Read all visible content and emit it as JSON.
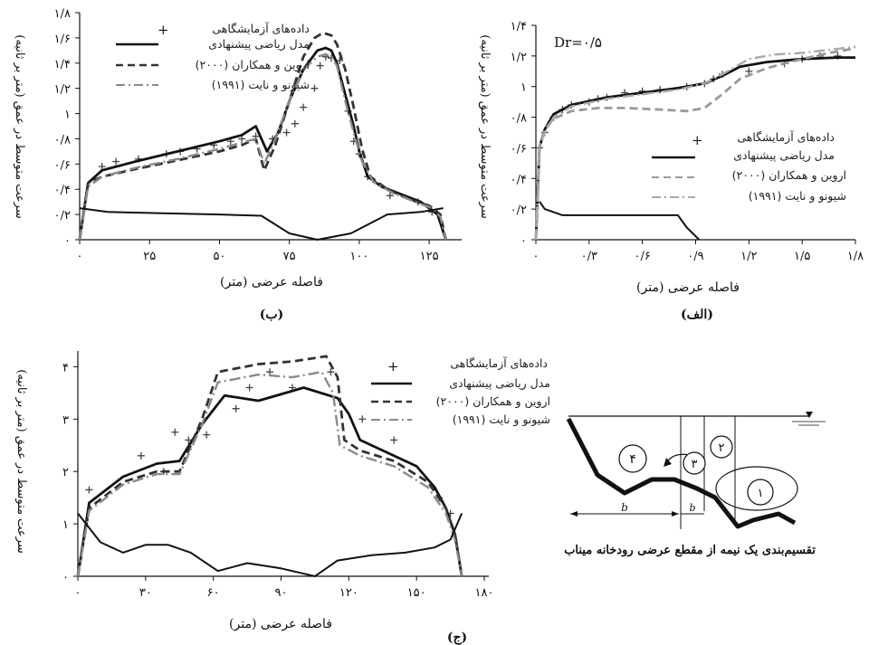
{
  "chart_data": [
    {
      "id": "b",
      "type": "line",
      "caption": "(ب)",
      "xlabel": "فاصله عرضی (متر)",
      "ylabel": "سرعت متوسط در عمق (متر بر ثانیه)",
      "xlim": [
        0,
        135
      ],
      "ylim": [
        0,
        1.8
      ],
      "xticks": [
        0,
        25,
        50,
        75,
        100,
        125
      ],
      "xtick_labels": [
        "۰",
        "۲۵",
        "۵۰",
        "۷۵",
        "۱۰۰",
        "۱۲۵"
      ],
      "yticks": [
        0,
        0.2,
        0.4,
        0.6,
        0.8,
        1,
        1.2,
        1.4,
        1.6,
        1.8
      ],
      "ytick_labels": [
        "۰",
        "۰/۲",
        "۰/۴",
        "۰/۶",
        "۰/۸",
        "۱",
        "۱/۲",
        "۱/۴",
        "۱/۶",
        "۱/۸"
      ],
      "legend_position": "top",
      "legend": [
        "داده‌های آزمایشگاهی",
        "مدل ریاضی پیشنهادی",
        "اروین و همکاران (۲۰۰۰)",
        "شیونو و نایت (۱۹۹۱)"
      ],
      "series": [
        {
          "name": "داده‌های آزمایشگاهی",
          "style": "marker",
          "color": "#444444",
          "x": [
            8,
            13,
            21,
            31,
            36,
            42,
            48,
            54,
            58,
            63,
            69,
            74,
            77,
            80,
            84,
            86,
            88,
            90,
            93,
            96,
            98,
            100,
            103,
            111,
            121,
            126
          ],
          "y": [
            0.58,
            0.62,
            0.64,
            0.68,
            0.7,
            0.72,
            0.75,
            0.78,
            0.8,
            0.82,
            0.8,
            0.85,
            0.92,
            1.05,
            1.2,
            1.38,
            1.45,
            1.44,
            1.42,
            1.02,
            0.78,
            0.68,
            0.5,
            0.35,
            0.3,
            0.22
          ]
        },
        {
          "name": "مدل ریاضی پیشنهادی",
          "style": "solid",
          "color": "#111111",
          "x": [
            0,
            3,
            8,
            20,
            35,
            50,
            58,
            63,
            67,
            71,
            75,
            80,
            85,
            88,
            90,
            92,
            95,
            98,
            100,
            103,
            108,
            115,
            122,
            128,
            131
          ],
          "y": [
            0,
            0.45,
            0.55,
            0.62,
            0.7,
            0.78,
            0.83,
            0.9,
            0.7,
            0.85,
            1.1,
            1.35,
            1.5,
            1.52,
            1.5,
            1.4,
            1.15,
            0.9,
            0.7,
            0.5,
            0.42,
            0.36,
            0.3,
            0.2,
            0
          ]
        },
        {
          "name": "اروین و همکاران (۲۰۰۰)",
          "style": "dashed",
          "color": "#333333",
          "x": [
            0,
            3,
            8,
            20,
            35,
            50,
            58,
            63,
            66,
            70,
            75,
            80,
            84,
            87,
            90,
            92,
            95,
            98,
            101,
            104,
            110,
            118,
            125,
            129,
            131
          ],
          "y": [
            0,
            0.45,
            0.5,
            0.56,
            0.63,
            0.7,
            0.75,
            0.8,
            0.55,
            0.75,
            1.1,
            1.45,
            1.6,
            1.64,
            1.62,
            1.55,
            1.35,
            1.05,
            0.72,
            0.5,
            0.4,
            0.32,
            0.27,
            0.2,
            0
          ]
        },
        {
          "name": "شیونو و نایت (۱۹۹۱)",
          "style": "dashdot",
          "color": "#8a8a8a",
          "x": [
            0,
            3,
            8,
            20,
            35,
            50,
            58,
            63,
            66,
            70,
            75,
            80,
            85,
            88,
            90,
            92,
            95,
            98,
            101,
            105,
            112,
            120,
            126,
            129,
            131
          ],
          "y": [
            0,
            0.42,
            0.5,
            0.57,
            0.64,
            0.72,
            0.77,
            0.8,
            0.6,
            0.8,
            1.1,
            1.35,
            1.45,
            1.47,
            1.45,
            1.38,
            1.1,
            0.85,
            0.62,
            0.46,
            0.37,
            0.3,
            0.25,
            0.18,
            0
          ]
        },
        {
          "name": "",
          "style": "solid-thin",
          "color": "#111111",
          "x": [
            0,
            10,
            30,
            50,
            65,
            75,
            85,
            97,
            110,
            122,
            130
          ],
          "y": [
            0.25,
            0.22,
            0.21,
            0.2,
            0.19,
            0.05,
            0,
            0.05,
            0.2,
            0.22,
            0.25
          ]
        }
      ]
    },
    {
      "id": "alef",
      "type": "line",
      "caption": "(الف)",
      "annotation": "Dr=۰/۵",
      "xlabel": "فاصله عرضی (متر)",
      "ylabel": "سرعت متوسط در عمق (متر بر ثانیه)",
      "xlim": [
        0,
        1.8
      ],
      "ylim": [
        0,
        1.4
      ],
      "xticks": [
        0,
        0.3,
        0.6,
        0.9,
        1.2,
        1.5,
        1.8
      ],
      "xtick_labels": [
        "۰",
        "۰/۳",
        "۰/۶",
        "۰/۹",
        "۱/۲",
        "۱/۵",
        "۱/۸"
      ],
      "yticks": [
        0,
        0.2,
        0.4,
        0.6,
        0.8,
        1,
        1.2,
        1.4
      ],
      "ytick_labels": [
        "۰",
        "۰/۲",
        "۰/۴",
        "۰/۶",
        "۰/۸",
        "۱",
        "۱/۲",
        "۱/۴"
      ],
      "legend_position": "right",
      "legend": [
        "داده‌های آزمایشگاهی",
        "مدل ریاضی پیشنهادی",
        "اروین و همکاران (۲۰۰۰)",
        "شیونو و نایت (۱۹۹۱)"
      ],
      "series": [
        {
          "name": "داده‌های آزمایشگاهی",
          "style": "marker",
          "color": "#444444",
          "x": [
            0.02,
            0.05,
            0.1,
            0.15,
            0.2,
            0.3,
            0.35,
            0.4,
            0.5,
            0.6,
            0.7,
            0.85,
            0.95,
            1.0,
            1.05,
            1.2,
            1.4,
            1.5,
            1.6,
            1.7
          ],
          "y": [
            0.6,
            0.7,
            0.8,
            0.85,
            0.88,
            0.9,
            0.92,
            0.93,
            0.96,
            0.97,
            0.98,
            1.0,
            1.02,
            1.05,
            1.08,
            1.1,
            1.15,
            1.18,
            1.2,
            1.2
          ]
        },
        {
          "name": "مدل ریاضی پیشنهادی",
          "style": "solid",
          "color": "#111111",
          "x": [
            0,
            0.02,
            0.05,
            0.1,
            0.2,
            0.4,
            0.6,
            0.8,
            0.95,
            1.05,
            1.15,
            1.3,
            1.5,
            1.7,
            1.8
          ],
          "y": [
            0,
            0.6,
            0.72,
            0.82,
            0.88,
            0.93,
            0.96,
            0.99,
            1.02,
            1.07,
            1.13,
            1.16,
            1.18,
            1.19,
            1.19
          ]
        },
        {
          "name": "اروین و همکاران (۲۰۰۰)",
          "style": "dashed",
          "color": "#999999",
          "x": [
            0,
            0.02,
            0.05,
            0.1,
            0.2,
            0.35,
            0.5,
            0.7,
            0.85,
            0.95,
            1.05,
            1.15,
            1.3,
            1.5,
            1.65,
            1.8
          ],
          "y": [
            0,
            0.6,
            0.72,
            0.79,
            0.84,
            0.86,
            0.86,
            0.85,
            0.84,
            0.86,
            0.95,
            1.05,
            1.12,
            1.18,
            1.22,
            1.25
          ]
        },
        {
          "name": "شیونو و نایت (۱۹۹۱)",
          "style": "dashdot",
          "color": "#aaaaaa",
          "x": [
            0,
            0.02,
            0.05,
            0.1,
            0.2,
            0.4,
            0.6,
            0.8,
            0.95,
            1.05,
            1.2,
            1.35,
            1.5,
            1.65,
            1.8
          ],
          "y": [
            0,
            0.6,
            0.7,
            0.8,
            0.87,
            0.92,
            0.95,
            0.98,
            1.02,
            1.08,
            1.18,
            1.21,
            1.22,
            1.24,
            1.26
          ]
        },
        {
          "name": "",
          "style": "solid-thin",
          "color": "#111111",
          "x": [
            0.02,
            0.05,
            0.15,
            0.8,
            0.85,
            0.92
          ],
          "y": [
            0.25,
            0.2,
            0.16,
            0.16,
            0.08,
            0
          ]
        }
      ]
    },
    {
      "id": "jim",
      "type": "line",
      "caption": "(ج)",
      "xlabel": "فاصله عرضی (متر)",
      "ylabel": "سرعت متوسط در عمق (متر بر ثانیه)",
      "xlim": [
        0,
        182
      ],
      "ylim": [
        0,
        4.3
      ],
      "xticks": [
        0,
        30,
        60,
        90,
        120,
        150,
        180
      ],
      "xtick_labels": [
        "۰",
        "۳۰",
        "۶۰",
        "۹۰",
        "۱۲۰",
        "۱۵۰",
        "۱۸۰"
      ],
      "yticks": [
        0,
        1,
        2,
        3,
        4
      ],
      "ytick_labels": [
        "۰",
        "۱",
        "۲",
        "۳",
        "۴"
      ],
      "legend_position": "top",
      "legend": [
        "داده‌های آزمایشگاهی",
        "مدل ریاضی پیشنهادی",
        "اروین و همکاران (۲۰۰۰)",
        "شیونو و نایت (۱۹۹۱)"
      ],
      "series": [
        {
          "name": "داده‌های آزمایشگاهی",
          "style": "marker",
          "color": "#444444",
          "x": [
            5,
            28,
            38,
            43,
            49,
            57,
            70,
            76,
            85,
            95,
            112,
            126,
            140,
            160,
            165
          ],
          "y": [
            1.65,
            2.3,
            2.0,
            2.75,
            2.6,
            2.7,
            3.2,
            3.6,
            3.9,
            3.6,
            3.9,
            3.0,
            2.6,
            1.5,
            1.2
          ]
        },
        {
          "name": "مدل ریاضی پیشنهادی",
          "style": "solid",
          "color": "#111111",
          "x": [
            0,
            5,
            20,
            35,
            45,
            55,
            65,
            80,
            100,
            115,
            120,
            125,
            135,
            150,
            158,
            163,
            167,
            170
          ],
          "y": [
            0,
            1.4,
            1.9,
            2.15,
            2.2,
            2.9,
            3.45,
            3.35,
            3.6,
            3.4,
            3.1,
            2.6,
            2.4,
            2.1,
            1.7,
            1.3,
            0.8,
            0
          ]
        },
        {
          "name": "اروین و همکاران (۲۰۰۰)",
          "style": "dashed",
          "color": "#333333",
          "x": [
            0,
            5,
            20,
            35,
            45,
            55,
            62,
            80,
            95,
            110,
            115,
            118,
            125,
            140,
            155,
            163,
            167,
            170
          ],
          "y": [
            0,
            1.3,
            1.8,
            2.0,
            2.0,
            3.0,
            3.9,
            4.05,
            4.1,
            4.2,
            3.8,
            2.6,
            2.4,
            2.2,
            1.8,
            1.3,
            0.8,
            0
          ]
        },
        {
          "name": "شیونو و نایت (۱۹۹۱)",
          "style": "dashdot",
          "color": "#8a8a8a",
          "x": [
            0,
            5,
            20,
            35,
            45,
            55,
            62,
            80,
            95,
            108,
            113,
            116,
            125,
            140,
            155,
            163,
            167,
            170
          ],
          "y": [
            0,
            1.25,
            1.75,
            1.95,
            1.95,
            2.9,
            3.7,
            3.85,
            3.8,
            3.9,
            3.5,
            2.5,
            2.3,
            2.1,
            1.7,
            1.2,
            0.7,
            0
          ]
        },
        {
          "name": "",
          "style": "solid-thin",
          "color": "#111111",
          "x": [
            0,
            10,
            20,
            30,
            40,
            50,
            62,
            75,
            90,
            105,
            115,
            130,
            145,
            158,
            165,
            170
          ],
          "y": [
            1.2,
            0.65,
            0.45,
            0.6,
            0.6,
            0.45,
            0.1,
            0.25,
            0.15,
            0.0,
            0.3,
            0.4,
            0.45,
            0.55,
            0.7,
            1.2
          ]
        }
      ]
    }
  ],
  "diagram": {
    "caption": "تقسیم‌بندی یک نیمه از مقطع عرضی رودخانه میناب",
    "zones": [
      "۱",
      "۲",
      "۳",
      "۴"
    ],
    "width_labels": [
      "b",
      "b"
    ]
  }
}
